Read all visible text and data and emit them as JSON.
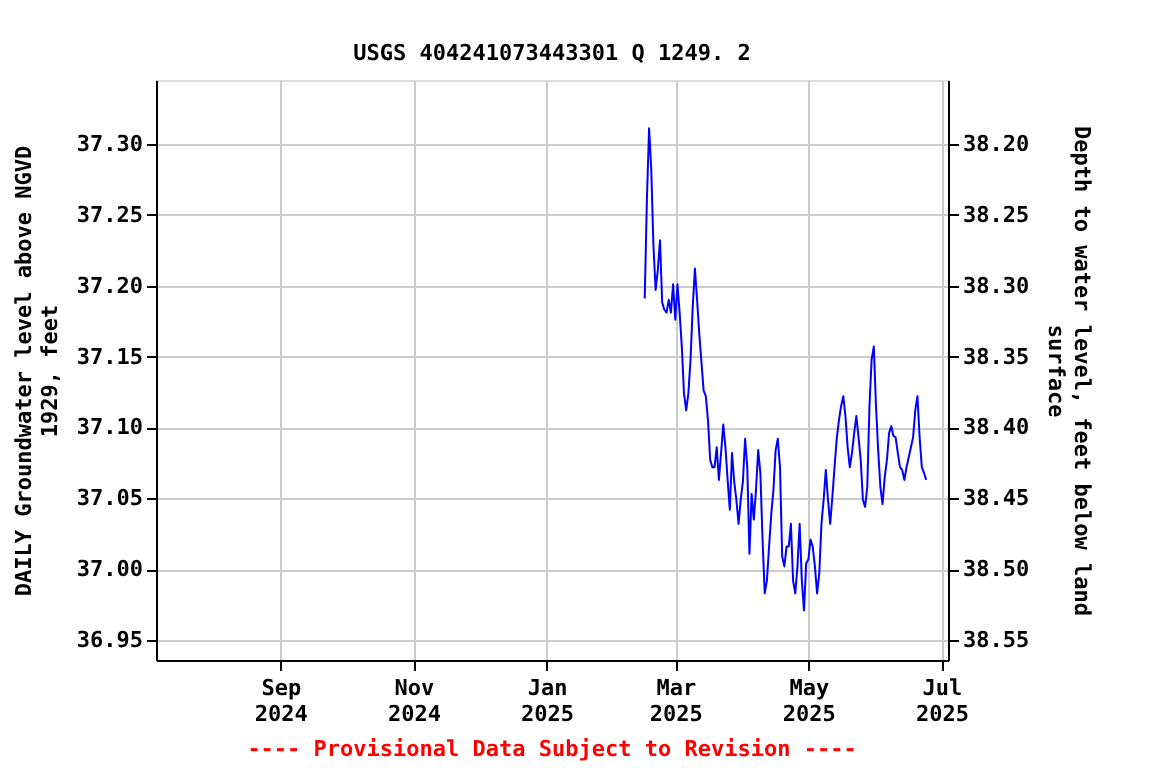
{
  "chart_data": {
    "type": "line",
    "title": "USGS 404241073443301 Q  1249. 2",
    "ylabel": "DAILY Groundwater level above NGVD 1929, feet",
    "y2label": "Depth to water level, feet below land surface",
    "annotations": [
      "---- Provisional Data Subject to Revision ----"
    ],
    "xlim": [
      "2024-07-06",
      "2025-07-04"
    ],
    "xticks": [
      {
        "value": "2024-09-01",
        "label": "Sep 2024"
      },
      {
        "value": "2024-11-01",
        "label": "Nov 2024"
      },
      {
        "value": "2025-01-01",
        "label": "Jan 2025"
      },
      {
        "value": "2025-03-01",
        "label": "Mar 2025"
      },
      {
        "value": "2025-05-01",
        "label": "May 2025"
      },
      {
        "value": "2025-07-01",
        "label": "Jul 2025"
      }
    ],
    "ylim": [
      36.936,
      37.345
    ],
    "yticks": [
      {
        "value": 36.95,
        "label": "36.95"
      },
      {
        "value": 37.0,
        "label": "37.00"
      },
      {
        "value": 37.05,
        "label": "37.05"
      },
      {
        "value": 37.1,
        "label": "37.10"
      },
      {
        "value": 37.15,
        "label": "37.15"
      },
      {
        "value": 37.2,
        "label": "37.20"
      },
      {
        "value": 37.25,
        "label": "37.25"
      },
      {
        "value": 37.3,
        "label": "37.30"
      }
    ],
    "y2lim": [
      38.564,
      38.155
    ],
    "y2ticks": [
      {
        "value": 38.2,
        "label": "38.20"
      },
      {
        "value": 38.25,
        "label": "38.25"
      },
      {
        "value": 38.3,
        "label": "38.30"
      },
      {
        "value": 38.35,
        "label": "38.35"
      },
      {
        "value": 38.4,
        "label": "38.40"
      },
      {
        "value": 38.45,
        "label": "38.45"
      },
      {
        "value": 38.5,
        "label": "38.50"
      },
      {
        "value": 38.55,
        "label": "38.55"
      }
    ],
    "grid": true,
    "marker": "none",
    "line_style": "solid",
    "x": [
      "2025-02-15",
      "2025-02-16",
      "2025-02-17",
      "2025-02-18",
      "2025-02-19",
      "2025-02-20",
      "2025-02-21",
      "2025-02-22",
      "2025-02-23",
      "2025-02-24",
      "2025-02-25",
      "2025-02-26",
      "2025-02-27",
      "2025-02-28",
      "2025-03-01",
      "2025-03-02",
      "2025-03-03",
      "2025-03-04",
      "2025-03-05",
      "2025-03-06",
      "2025-03-07",
      "2025-03-08",
      "2025-03-09",
      "2025-03-10",
      "2025-03-11",
      "2025-03-12",
      "2025-03-13",
      "2025-03-14",
      "2025-03-15",
      "2025-03-16",
      "2025-03-17",
      "2025-03-18",
      "2025-03-19",
      "2025-03-20",
      "2025-03-21",
      "2025-03-22",
      "2025-03-23",
      "2025-03-24",
      "2025-03-25",
      "2025-03-26",
      "2025-03-27",
      "2025-03-28",
      "2025-03-29",
      "2025-03-30",
      "2025-03-31",
      "2025-04-01",
      "2025-04-02",
      "2025-04-03",
      "2025-04-04",
      "2025-04-05",
      "2025-04-06",
      "2025-04-07",
      "2025-04-08",
      "2025-04-09",
      "2025-04-10",
      "2025-04-11",
      "2025-04-12",
      "2025-04-13",
      "2025-04-14",
      "2025-04-15",
      "2025-04-16",
      "2025-04-17",
      "2025-04-18",
      "2025-04-19",
      "2025-04-20",
      "2025-04-21",
      "2025-04-22",
      "2025-04-23",
      "2025-04-24",
      "2025-04-25",
      "2025-04-26",
      "2025-04-27",
      "2025-04-28",
      "2025-04-29",
      "2025-04-30",
      "2025-05-01",
      "2025-05-02",
      "2025-05-03",
      "2025-05-04",
      "2025-05-05",
      "2025-05-06",
      "2025-05-07",
      "2025-05-08",
      "2025-05-09",
      "2025-05-10",
      "2025-05-11",
      "2025-05-12",
      "2025-05-13",
      "2025-05-14",
      "2025-05-15",
      "2025-05-16",
      "2025-05-17",
      "2025-05-18",
      "2025-05-19",
      "2025-05-20",
      "2025-05-21",
      "2025-05-22",
      "2025-05-23",
      "2025-05-24",
      "2025-05-25",
      "2025-05-26",
      "2025-05-27",
      "2025-05-28",
      "2025-05-29",
      "2025-05-30",
      "2025-05-31",
      "2025-06-01",
      "2025-06-02",
      "2025-06-03",
      "2025-06-04",
      "2025-06-05",
      "2025-06-06",
      "2025-06-07",
      "2025-06-08",
      "2025-06-09",
      "2025-06-10",
      "2025-06-11",
      "2025-06-12",
      "2025-06-13",
      "2025-06-14",
      "2025-06-15",
      "2025-06-16",
      "2025-06-17",
      "2025-06-18",
      "2025-06-19",
      "2025-06-20",
      "2025-06-21",
      "2025-06-22",
      "2025-06-23",
      "2025-06-24"
    ],
    "series": [
      {
        "color": "#0000ff",
        "values": [
          37.191,
          37.261,
          37.311,
          37.282,
          37.228,
          37.197,
          37.211,
          37.232,
          37.188,
          37.183,
          37.181,
          37.19,
          37.181,
          37.201,
          37.176,
          37.201,
          37.181,
          37.157,
          37.124,
          37.112,
          37.124,
          37.148,
          37.185,
          37.212,
          37.19,
          37.166,
          37.146,
          37.126,
          37.122,
          37.105,
          37.077,
          37.072,
          37.072,
          37.086,
          37.063,
          37.082,
          37.102,
          37.086,
          37.063,
          37.042,
          37.082,
          37.062,
          37.049,
          37.032,
          37.049,
          37.062,
          37.092,
          37.072,
          37.011,
          37.053,
          37.035,
          37.056,
          37.084,
          37.068,
          37.021,
          36.983,
          36.992,
          37.016,
          37.039,
          37.056,
          37.084,
          37.092,
          37.072,
          37.009,
          37.002,
          37.016,
          37.016,
          37.032,
          36.992,
          36.983,
          37.002,
          37.032,
          36.992,
          36.971,
          37.004,
          37.007,
          37.021,
          37.016,
          37.002,
          36.983,
          36.997,
          37.032,
          37.049,
          37.07,
          37.049,
          37.032,
          37.051,
          37.072,
          37.092,
          37.105,
          37.115,
          37.122,
          37.108,
          37.086,
          37.072,
          37.082,
          37.096,
          37.108,
          37.093,
          37.077,
          37.049,
          37.044,
          37.058,
          37.115,
          37.148,
          37.157,
          37.115,
          37.084,
          37.058,
          37.046,
          37.065,
          37.077,
          37.096,
          37.101,
          37.094,
          37.093,
          37.082,
          37.072,
          37.07,
          37.063,
          37.072,
          37.079,
          37.086,
          37.093,
          37.112,
          37.122,
          37.093,
          37.072,
          37.068,
          37.063
        ]
      }
    ]
  }
}
